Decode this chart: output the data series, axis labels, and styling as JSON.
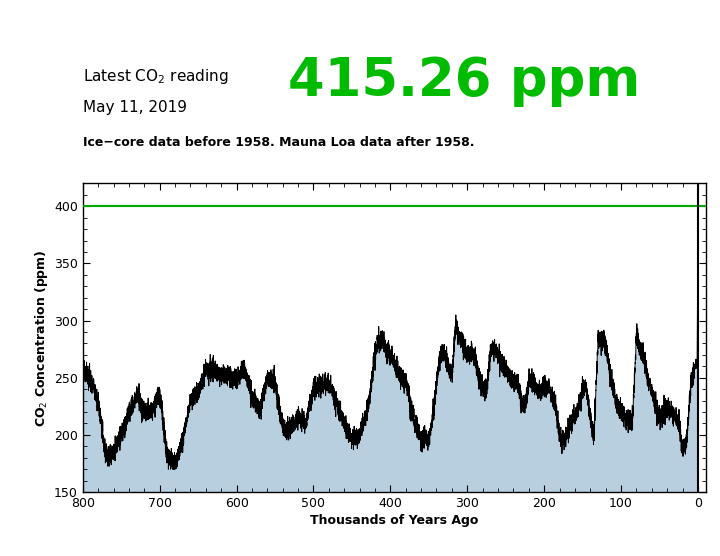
{
  "title_line1": "Latest CO",
  "title_sub": "2",
  "title_line1_end": " reading",
  "title_line2": "May 11, 2019",
  "big_value": "415.26 ppm",
  "subtitle": "Ice−core data before 1958. Mauna Loa data after 1958.",
  "xlabel": "Thousands of Years Ago",
  "ylabel": "CO$_2$ Concentration (ppm)",
  "ylim": [
    150,
    420
  ],
  "xlim": [
    800,
    -10
  ],
  "yticks": [
    150,
    200,
    250,
    300,
    350,
    400
  ],
  "xticks": [
    800,
    700,
    600,
    500,
    400,
    300,
    200,
    100,
    0
  ],
  "hline_y": 400,
  "hline_color": "#00aa00",
  "current_reading": 415.26,
  "fill_color": "#b8cfe0",
  "line_color": "#000000",
  "big_value_color": "#00bb00",
  "background_color": "#ffffff",
  "fig_width": 7.2,
  "fig_height": 5.56,
  "dpi": 100
}
